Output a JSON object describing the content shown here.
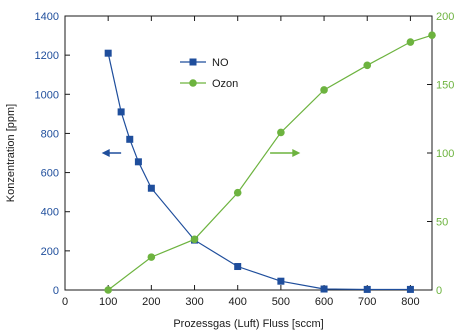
{
  "chart_data": {
    "type": "line",
    "title": "",
    "xlabel": "Prozessgas (Luft) Fluss [sccm]",
    "ylabel": "Konzentration [ppm]",
    "y2label": "",
    "xlim": [
      0,
      850
    ],
    "ylim": [
      0,
      1400
    ],
    "y2lim": [
      0,
      200
    ],
    "xticks": [
      0,
      100,
      200,
      300,
      400,
      500,
      600,
      700,
      800
    ],
    "yticks": [
      0,
      200,
      400,
      600,
      800,
      1000,
      1200,
      1400
    ],
    "y2ticks": [
      0,
      50,
      100,
      150,
      200
    ],
    "grid": false,
    "legend_position": "top-center",
    "series": [
      {
        "name": "NO",
        "axis": "left",
        "color": "#1f4e9c",
        "marker": "square",
        "x": [
          100,
          130,
          150,
          170,
          200,
          300,
          400,
          500,
          600,
          700,
          800
        ],
        "y": [
          1210,
          910,
          770,
          655,
          520,
          255,
          120,
          45,
          5,
          3,
          3
        ]
      },
      {
        "name": "Ozon",
        "axis": "right",
        "color": "#6db33f",
        "marker": "circle",
        "x": [
          100,
          200,
          300,
          400,
          500,
          600,
          700,
          800,
          850
        ],
        "y": [
          0,
          24,
          37,
          71,
          115,
          146,
          164,
          181,
          186
        ]
      }
    ],
    "annotations": [
      {
        "type": "arrow",
        "direction": "left",
        "series": "NO",
        "color": "#1f4e9c"
      },
      {
        "type": "arrow",
        "direction": "right",
        "series": "Ozon",
        "color": "#6db33f"
      }
    ]
  }
}
